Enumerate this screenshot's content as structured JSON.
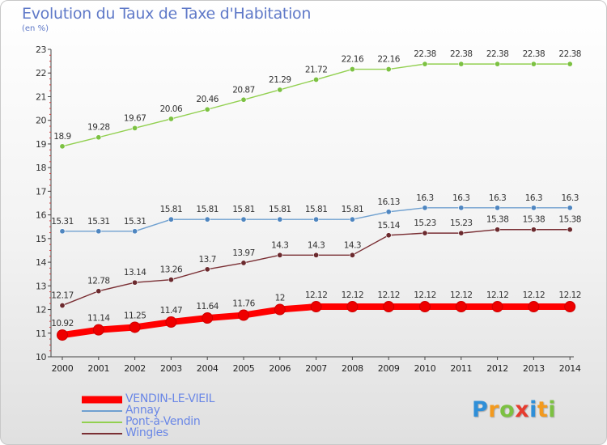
{
  "title": "Evolution du Taux de Taxe d'Habitation",
  "subtitle": "(en %)",
  "logo": {
    "letters": [
      {
        "ch": "P",
        "color": "#2f8fd8"
      },
      {
        "ch": "r",
        "color": "#f39a1e"
      },
      {
        "ch": "o",
        "color": "#7cc142"
      },
      {
        "ch": "x",
        "color": "#e63c2f"
      },
      {
        "ch": "i",
        "color": "#2f8fd8"
      },
      {
        "ch": "t",
        "color": "#f39a1e"
      },
      {
        "ch": "i",
        "color": "#7cc142"
      }
    ]
  },
  "chart_data": {
    "type": "line",
    "title": "Evolution du Taux de Taxe d'Habitation",
    "subtitle": "(en %)",
    "xlabel": "",
    "ylabel": "",
    "ylim": [
      10,
      23
    ],
    "yticks": [
      10,
      11,
      12,
      13,
      14,
      15,
      16,
      17,
      18,
      19,
      20,
      21,
      22,
      23
    ],
    "grid": false,
    "legend_position": "bottom-left",
    "x": [
      "2000",
      "2001",
      "2002",
      "2003",
      "2004",
      "2005",
      "2006",
      "2007",
      "2008",
      "2009",
      "2010",
      "2011",
      "2012",
      "2013",
      "2014"
    ],
    "series": [
      {
        "name": "Pont-à-Vendin",
        "color": "#92d050",
        "marker": "#7cc142",
        "emphasis": false,
        "values": [
          18.9,
          19.28,
          19.67,
          20.06,
          20.46,
          20.87,
          21.29,
          21.72,
          22.16,
          22.16,
          22.38,
          22.38,
          22.38,
          22.38,
          22.38
        ],
        "labels": [
          "18.9",
          "19.28",
          "19.67",
          "20.06",
          "20.46",
          "20.87",
          "21.29",
          "21.72",
          "22.16",
          "22.16",
          "22.38",
          "22.38",
          "22.38",
          "22.38",
          "22.38"
        ]
      },
      {
        "name": "Annay",
        "color": "#6fa0d0",
        "marker": "#4f86c0",
        "emphasis": false,
        "values": [
          15.31,
          15.31,
          15.31,
          15.81,
          15.81,
          15.81,
          15.81,
          15.81,
          15.81,
          16.13,
          16.3,
          16.3,
          16.3,
          16.3,
          16.3
        ],
        "labels": [
          "15.31",
          "15.31",
          "15.31",
          "15.81",
          "15.81",
          "15.81",
          "15.81",
          "15.81",
          "15.81",
          "16.13",
          "16.3",
          "16.3",
          "16.3",
          "16.3",
          "16.3"
        ]
      },
      {
        "name": "Wingles",
        "color": "#7a2f34",
        "marker": "#6b2a2e",
        "emphasis": false,
        "values": [
          12.17,
          12.78,
          13.14,
          13.26,
          13.7,
          13.97,
          14.3,
          14.3,
          14.3,
          15.14,
          15.23,
          15.23,
          15.38,
          15.38,
          15.38
        ],
        "labels": [
          "12.17",
          "12.78",
          "13.14",
          "13.26",
          "13.7",
          "13.97",
          "14.3",
          "14.3",
          "14.3",
          "15.14",
          "15.23",
          "15.23",
          "15.38",
          "15.38",
          "15.38"
        ]
      },
      {
        "name": "VENDIN-LE-VIEIL",
        "color": "#ff0000",
        "marker": "#ee0000",
        "emphasis": true,
        "values": [
          10.92,
          11.14,
          11.25,
          11.47,
          11.64,
          11.76,
          12,
          12.12,
          12.12,
          12.12,
          12.12,
          12.12,
          12.12,
          12.12,
          12.12
        ],
        "labels": [
          "10.92",
          "11.14",
          "11.25",
          "11.47",
          "11.64",
          "11.76",
          "12",
          "12.12",
          "12.12",
          "12.12",
          "12.12",
          "12.12",
          "12.12",
          "12.12",
          "12.12"
        ]
      }
    ],
    "legend": [
      "VENDIN-LE-VIEIL",
      "Annay",
      "Pont-à-Vendin",
      "Wingles"
    ]
  }
}
